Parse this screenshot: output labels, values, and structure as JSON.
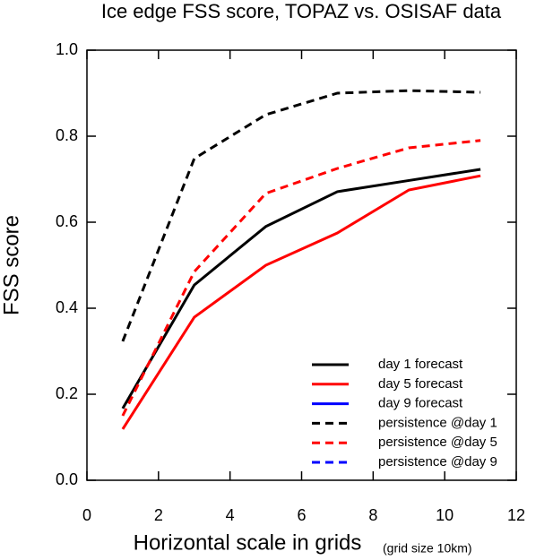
{
  "chart_data": {
    "type": "line",
    "title": "Ice edge FSS score, TOPAZ vs. OSISAF data",
    "xlabel": "Horizontal scale in grids",
    "xlabel_note": "(grid size 10km)",
    "ylabel": "FSS score",
    "x": [
      1,
      3,
      5,
      7,
      9,
      11
    ],
    "series": [
      {
        "name": "day 1 forecast",
        "color": "#000000",
        "dashed": false,
        "values": [
          0.167,
          0.454,
          0.59,
          0.671,
          0.697,
          0.723
        ]
      },
      {
        "name": "day 5 forecast",
        "color": "#ff0000",
        "dashed": false,
        "values": [
          0.119,
          0.379,
          0.5,
          0.575,
          0.675,
          0.708
        ]
      },
      {
        "name": "day 9 forecast",
        "color": "#0000ff",
        "dashed": false,
        "values": [
          null,
          null,
          null,
          null,
          null,
          null
        ]
      },
      {
        "name": "persistence @day 1",
        "color": "#000000",
        "dashed": true,
        "values": [
          0.323,
          0.748,
          0.85,
          0.9,
          0.906,
          0.902
        ]
      },
      {
        "name": "persistence @day 5",
        "color": "#ff0000",
        "dashed": true,
        "values": [
          0.15,
          0.485,
          0.667,
          0.725,
          0.773,
          0.79
        ]
      },
      {
        "name": "persistence @day 9",
        "color": "#0000ff",
        "dashed": true,
        "values": [
          null,
          null,
          null,
          null,
          null,
          null
        ]
      }
    ],
    "xlim": [
      0,
      12
    ],
    "xticks": [
      0,
      2,
      4,
      6,
      8,
      10,
      12
    ],
    "ylim": [
      0,
      1
    ],
    "yticks": [
      {
        "value": 0,
        "label": "0.0"
      },
      0.2,
      0.4,
      0.6,
      0.8,
      {
        "value": 1,
        "label": "1.0"
      }
    ],
    "grid": false,
    "legend": "lower right"
  }
}
